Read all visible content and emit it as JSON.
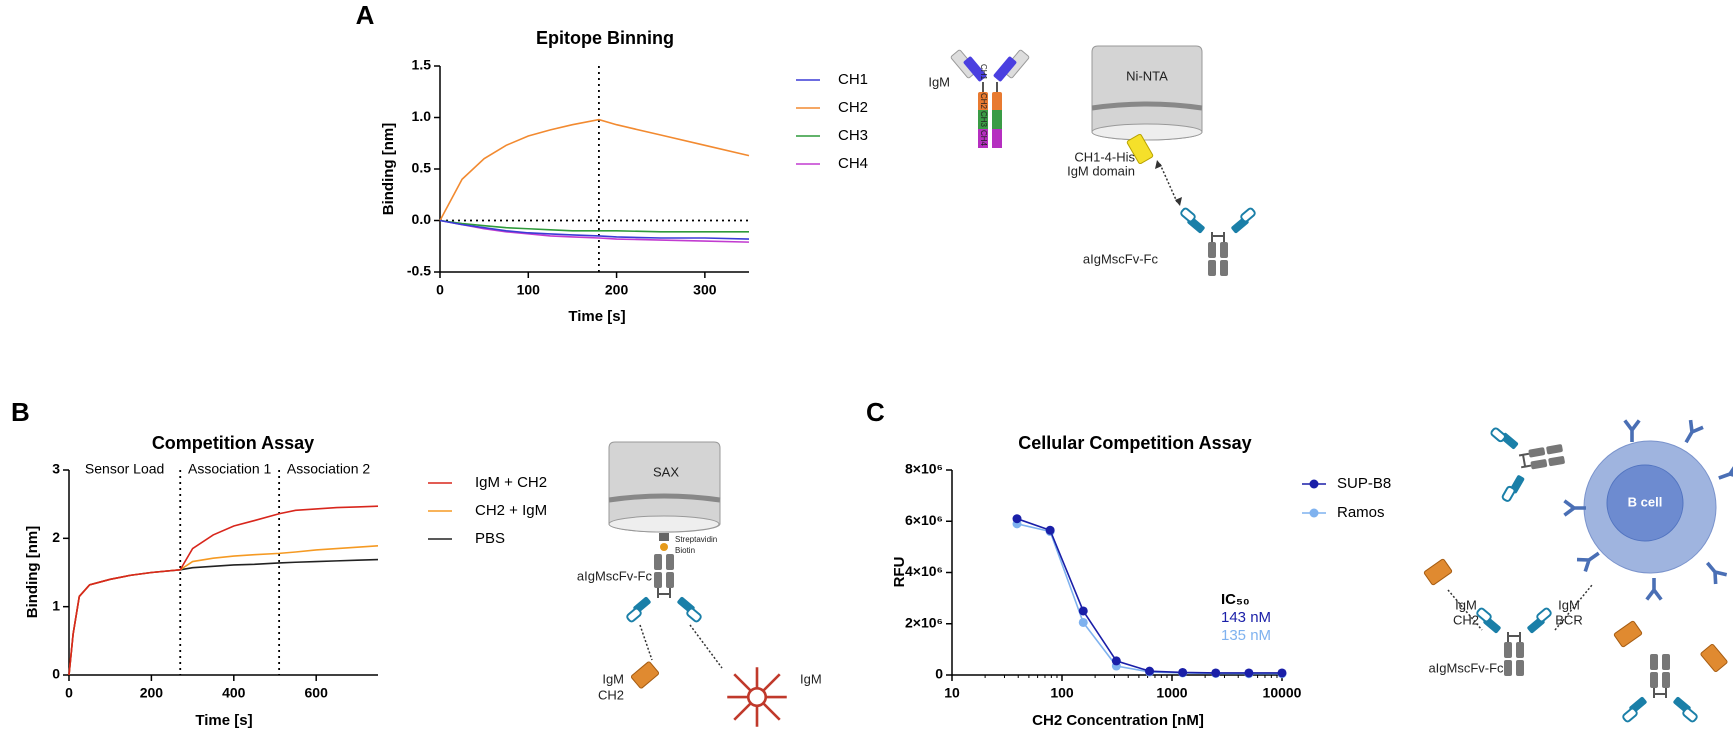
{
  "panel_labels": [
    "A",
    "B",
    "C"
  ],
  "chart_data": [
    {
      "type": "line",
      "title": "Epitope Binning",
      "xlabel": "Time [s]",
      "ylabel": "Binding [nm]",
      "x": [
        0,
        25,
        50,
        75,
        100,
        125,
        150,
        180,
        200,
        250,
        300,
        350
      ],
      "series": [
        {
          "name": "CH1",
          "color": "#3b3bd6",
          "values": [
            0,
            -0.04,
            -0.07,
            -0.1,
            -0.12,
            -0.13,
            -0.14,
            -0.15,
            -0.16,
            -0.17,
            -0.17,
            -0.18
          ]
        },
        {
          "name": "CH2",
          "color": "#f28a30",
          "values": [
            0,
            0.4,
            0.6,
            0.73,
            0.82,
            0.88,
            0.93,
            0.98,
            0.93,
            0.83,
            0.73,
            0.63
          ]
        },
        {
          "name": "CH3",
          "color": "#2e9a3a",
          "values": [
            0,
            -0.03,
            -0.05,
            -0.07,
            -0.08,
            -0.09,
            -0.1,
            -0.1,
            -0.1,
            -0.11,
            -0.11,
            -0.11
          ]
        },
        {
          "name": "CH4",
          "color": "#c23cd0",
          "values": [
            0,
            -0.04,
            -0.08,
            -0.11,
            -0.13,
            -0.15,
            -0.16,
            -0.17,
            -0.18,
            -0.19,
            -0.2,
            -0.21
          ]
        }
      ],
      "xlim": [
        0,
        350
      ],
      "xticks": [
        0,
        100,
        200,
        300
      ],
      "ylim": [
        -0.5,
        1.5
      ],
      "yticks": [
        -0.5,
        {
          "value": 0,
          "label": "0.0"
        },
        0.5,
        {
          "value": 1,
          "label": "1.0"
        },
        1.5
      ],
      "vlines": [
        180
      ],
      "hlines": [
        0
      ]
    },
    {
      "type": "line",
      "title": "Competition Assay",
      "xlabel": "Time [s]",
      "ylabel": "Binding [nm]",
      "x": [
        0,
        10,
        25,
        50,
        100,
        150,
        200,
        270,
        300,
        350,
        400,
        450,
        510,
        550,
        600,
        650,
        700,
        750
      ],
      "series": [
        {
          "name": "IgM + CH2",
          "color": "#d8261c",
          "values": [
            0,
            0.6,
            1.15,
            1.32,
            1.4,
            1.46,
            1.5,
            1.54,
            1.85,
            2.05,
            2.18,
            2.26,
            2.36,
            2.41,
            2.43,
            2.45,
            2.46,
            2.47
          ]
        },
        {
          "name": "CH2 + IgM",
          "color": "#f59a23",
          "values": [
            0,
            0.6,
            1.15,
            1.32,
            1.4,
            1.46,
            1.5,
            1.54,
            1.66,
            1.71,
            1.74,
            1.76,
            1.78,
            1.8,
            1.83,
            1.85,
            1.87,
            1.89
          ]
        },
        {
          "name": "PBS",
          "color": "#222222",
          "values": [
            0,
            0.6,
            1.15,
            1.32,
            1.4,
            1.46,
            1.5,
            1.54,
            1.57,
            1.59,
            1.61,
            1.62,
            1.64,
            1.65,
            1.66,
            1.67,
            1.68,
            1.69
          ]
        }
      ],
      "xlim": [
        0,
        750
      ],
      "xticks": [
        0,
        200,
        400,
        600
      ],
      "ylim": [
        0,
        3
      ],
      "yticks": [
        0,
        1,
        2,
        3
      ],
      "vlines": [
        270,
        510
      ],
      "hlines": [],
      "annotations": [
        "Sensor Load",
        "Association 1",
        "Association 2"
      ]
    },
    {
      "type": "line",
      "markers": true,
      "xscale": "log",
      "title": "Cellular Competition Assay",
      "xlabel": "CH2 Concentration [nM]",
      "ylabel": "RFU",
      "x": [
        39,
        78,
        156,
        312,
        625,
        1250,
        2500,
        5000,
        10000
      ],
      "series": [
        {
          "name": "SUP-B8",
          "color": "#1a1fa8",
          "values": [
            6100000,
            5650000,
            2500000,
            550000,
            150000,
            100000,
            80000,
            80000,
            80000
          ],
          "ic50_label": "143 nM"
        },
        {
          "name": "Ramos",
          "color": "#7fb2ef",
          "values": [
            5900000,
            5600000,
            2050000,
            350000,
            120000,
            80000,
            60000,
            50000,
            50000
          ],
          "ic50_label": "135 nM"
        }
      ],
      "ic50_title": "IC₅₀",
      "xlim": [
        10,
        10000
      ],
      "xticks": [
        10,
        100,
        1000,
        10000
      ],
      "ylim": [
        0,
        8000000
      ],
      "yticks": [
        0,
        {
          "value": 2000000,
          "label": "2×10⁶"
        },
        {
          "value": 4000000,
          "label": "4×10⁶"
        },
        {
          "value": 6000000,
          "label": "6×10⁶"
        },
        {
          "value": 8000000,
          "label": "8×10⁶"
        }
      ],
      "vlines": [],
      "hlines": []
    }
  ],
  "diagrams": {
    "a": {
      "igm": "IgM",
      "domains": [
        "CH1",
        "CH2",
        "CH3",
        "CH4"
      ],
      "sensor": "Ni-NTA",
      "ligand": [
        "CH1-4-His",
        "IgM domain"
      ],
      "antibody": "aIgMscFv-Fc"
    },
    "b": {
      "sensor": "SAX",
      "streptavidin": "Streptavidin",
      "biotin": "Biotin",
      "antibody": "aIgMscFv-Fc",
      "analyte1": [
        "IgM",
        "CH2"
      ],
      "analyte2": "IgM"
    },
    "c": {
      "cell": "B cell",
      "analyte1": [
        "IgM",
        "CH2"
      ],
      "analyte2": [
        "IgM",
        "BCR"
      ],
      "antibody": "aIgMscFv-Fc"
    }
  }
}
